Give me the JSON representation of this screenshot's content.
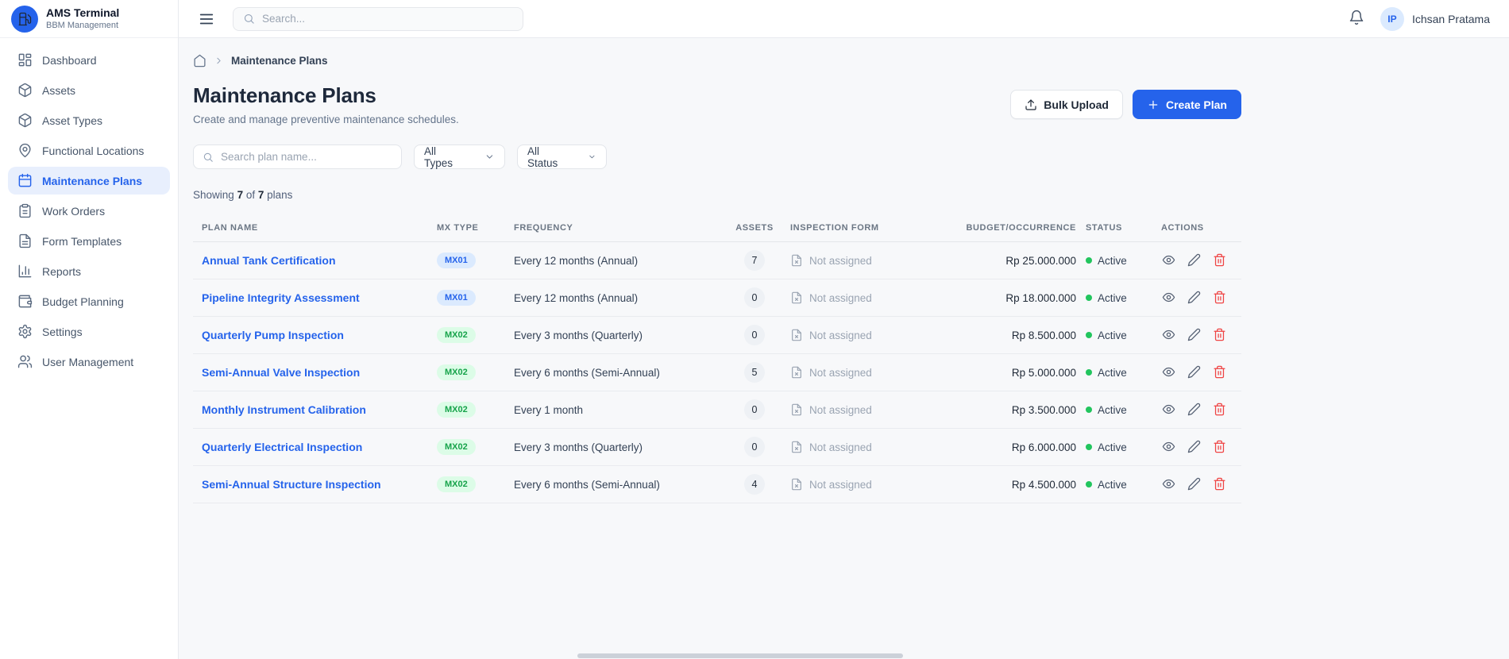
{
  "app": {
    "name": "AMS Terminal",
    "subtitle": "BBM Management"
  },
  "topbar": {
    "search_placeholder": "Search...",
    "user": {
      "initials": "IP",
      "name": "Ichsan Pratama"
    }
  },
  "sidebar": {
    "items": [
      {
        "label": "Dashboard",
        "icon": "dashboard-icon",
        "active": false
      },
      {
        "label": "Assets",
        "icon": "package-icon",
        "active": false
      },
      {
        "label": "Asset Types",
        "icon": "package-icon",
        "active": false
      },
      {
        "label": "Functional Locations",
        "icon": "map-pin-icon",
        "active": false
      },
      {
        "label": "Maintenance Plans",
        "icon": "calendar-icon",
        "active": true
      },
      {
        "label": "Work Orders",
        "icon": "clipboard-icon",
        "active": false
      },
      {
        "label": "Form Templates",
        "icon": "file-text-icon",
        "active": false
      },
      {
        "label": "Reports",
        "icon": "bar-chart-icon",
        "active": false
      },
      {
        "label": "Budget Planning",
        "icon": "wallet-icon",
        "active": false
      },
      {
        "label": "Settings",
        "icon": "gear-icon",
        "active": false
      },
      {
        "label": "User Management",
        "icon": "users-icon",
        "active": false
      }
    ]
  },
  "breadcrumb": {
    "current": "Maintenance Plans"
  },
  "page": {
    "title": "Maintenance Plans",
    "subtitle": "Create and manage preventive maintenance schedules.",
    "bulk_upload_label": "Bulk Upload",
    "create_plan_label": "Create Plan"
  },
  "filters": {
    "search_placeholder": "Search plan name...",
    "type_value": "All Types",
    "status_value": "All Status"
  },
  "summary": {
    "showing_label": "Showing",
    "shown_count": "7",
    "of_label": "of",
    "total_count": "7",
    "plans_label": "plans"
  },
  "table": {
    "headers": [
      "Plan Name",
      "MX Type",
      "Frequency",
      "Assets",
      "Inspection Form",
      "Budget/Occurrence",
      "Status",
      "Actions"
    ],
    "rows": [
      {
        "plan_name": "Annual Tank Certification",
        "mx_type": "MX01",
        "frequency": "Every 12 months (Annual)",
        "assets": "7",
        "inspection_form": "Not assigned",
        "budget": "Rp 25.000.000",
        "status": "Active"
      },
      {
        "plan_name": "Pipeline Integrity Assessment",
        "mx_type": "MX01",
        "frequency": "Every 12 months (Annual)",
        "assets": "0",
        "inspection_form": "Not assigned",
        "budget": "Rp 18.000.000",
        "status": "Active"
      },
      {
        "plan_name": "Quarterly Pump Inspection",
        "mx_type": "MX02",
        "frequency": "Every 3 months (Quarterly)",
        "assets": "0",
        "inspection_form": "Not assigned",
        "budget": "Rp 8.500.000",
        "status": "Active"
      },
      {
        "plan_name": "Semi-Annual Valve Inspection",
        "mx_type": "MX02",
        "frequency": "Every 6 months (Semi-Annual)",
        "assets": "5",
        "inspection_form": "Not assigned",
        "budget": "Rp 5.000.000",
        "status": "Active"
      },
      {
        "plan_name": "Monthly Instrument Calibration",
        "mx_type": "MX02",
        "frequency": "Every 1 month",
        "assets": "0",
        "inspection_form": "Not assigned",
        "budget": "Rp 3.500.000",
        "status": "Active"
      },
      {
        "plan_name": "Quarterly Electrical Inspection",
        "mx_type": "MX02",
        "frequency": "Every 3 months (Quarterly)",
        "assets": "0",
        "inspection_form": "Not assigned",
        "budget": "Rp 6.000.000",
        "status": "Active"
      },
      {
        "plan_name": "Semi-Annual Structure Inspection",
        "mx_type": "MX02",
        "frequency": "Every 6 months (Semi-Annual)",
        "assets": "4",
        "inspection_form": "Not assigned",
        "budget": "Rp 4.500.000",
        "status": "Active"
      }
    ]
  },
  "colors": {
    "primary": "#2563eb",
    "sidebar_active_bg": "#e8effd",
    "mx01_bg": "#dbeafe",
    "mx01_text": "#2563eb",
    "mx02_bg": "#dcfce7",
    "mx02_text": "#16a34a",
    "status_active_dot": "#22c55e",
    "delete_icon": "#ef4444"
  }
}
